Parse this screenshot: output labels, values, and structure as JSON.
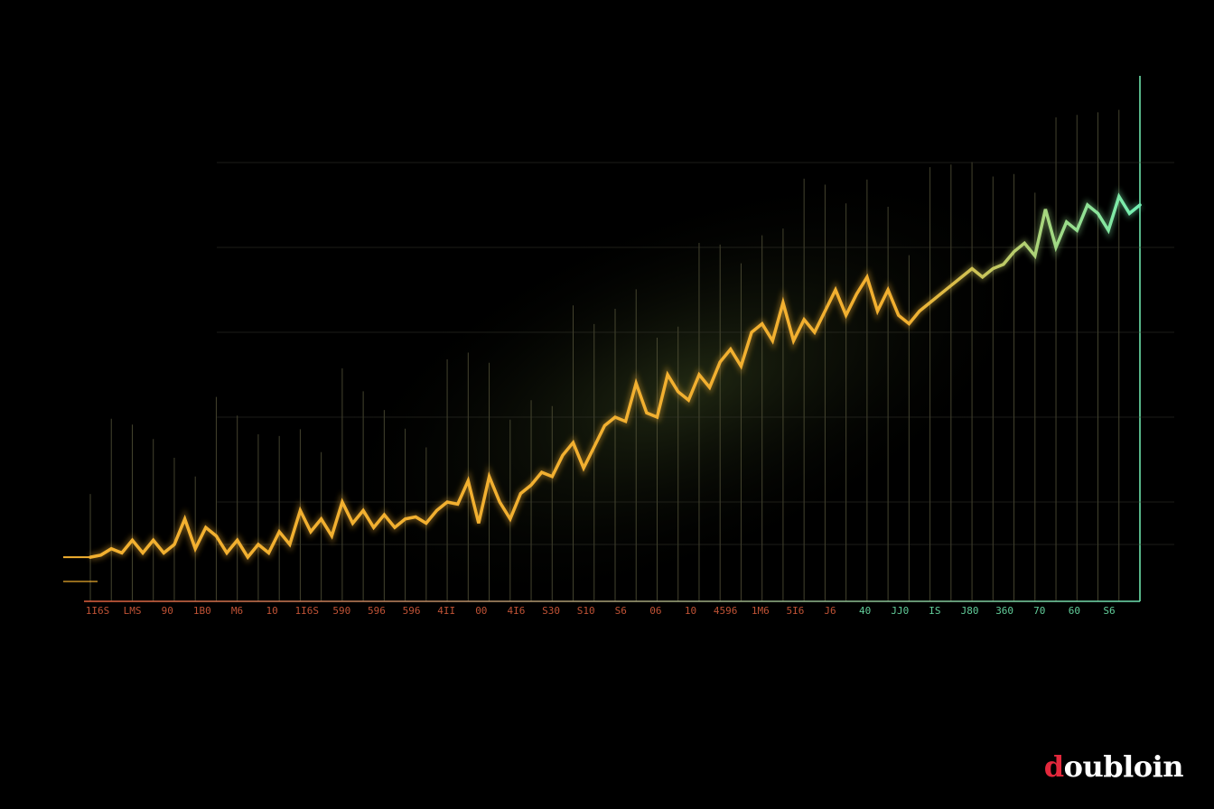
{
  "chart_data": {
    "type": "line",
    "title": "",
    "xlabel": "",
    "ylabel": "",
    "x_tick_labels": [
      "1I6S",
      "LMS",
      "90",
      "1B0",
      "M6",
      "10",
      "1I6S",
      "590",
      "596",
      "596",
      "4II",
      "00",
      "4I6",
      "S30",
      "S10",
      "S6",
      "06",
      "10",
      "4596",
      "1M6",
      "5I6",
      "J6",
      "40",
      "JJ0",
      "IS",
      "J80",
      "360",
      "70",
      "60",
      "S6"
    ],
    "x": [
      0,
      1,
      2,
      3,
      4,
      5,
      6,
      7,
      8,
      9,
      10,
      11,
      12,
      13,
      14,
      15,
      16,
      17,
      18,
      19,
      20,
      21,
      22,
      23,
      24,
      25,
      26,
      27,
      28,
      29,
      30,
      31,
      32,
      33,
      34,
      35,
      36,
      37,
      38,
      39,
      40,
      41,
      42,
      43,
      44,
      45,
      46,
      47,
      48,
      49,
      50,
      51,
      52,
      53,
      54,
      55,
      56,
      57,
      58,
      59,
      60,
      61,
      62,
      63,
      64,
      65,
      66,
      67,
      68,
      69,
      70,
      71,
      72,
      73,
      74,
      75,
      76,
      77,
      78,
      79,
      80,
      81,
      82,
      83,
      84,
      85,
      86,
      87,
      88,
      89,
      90,
      91,
      92,
      93,
      94,
      95,
      96,
      97,
      98,
      99,
      100
    ],
    "xlim": [
      0,
      100
    ],
    "ylim": [
      0,
      100
    ],
    "series": [
      {
        "values": [
          7,
          7.5,
          9,
          8,
          11,
          8,
          11,
          8,
          10,
          16,
          9,
          14,
          12,
          8,
          11,
          7,
          10,
          8,
          13,
          10,
          18,
          13,
          16,
          12,
          20,
          15,
          18,
          14,
          17,
          14,
          16,
          16.5,
          15,
          18,
          20,
          19.5,
          25,
          15,
          26,
          20,
          16,
          22,
          24,
          27,
          26,
          31,
          34,
          28,
          33,
          38,
          40,
          39,
          48,
          41,
          40,
          50,
          46,
          44,
          50,
          47,
          53,
          56,
          52,
          60,
          62,
          58,
          67,
          58,
          63,
          60,
          65,
          70,
          64,
          69,
          73,
          65,
          70,
          64,
          62,
          65,
          67,
          69,
          71,
          73,
          75,
          73,
          75,
          76,
          79,
          81,
          78,
          89,
          80,
          86,
          84,
          90,
          88,
          84,
          92,
          88,
          90
        ]
      }
    ],
    "colors": {
      "line_start": "#f2b030",
      "line_end": "#72f0b4",
      "axis_start": "#e0603e",
      "axis_end": "#6ee0b0",
      "gridline": "#5b5a3e",
      "background": "#000000"
    },
    "grid": true,
    "legend": "none"
  },
  "watermark": {
    "accent": "d",
    "rest": "oubloin"
  }
}
